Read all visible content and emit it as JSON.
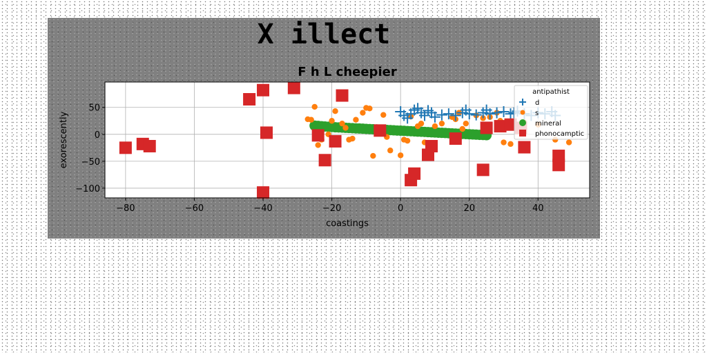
{
  "figure": {
    "suptitle": "X illect"
  },
  "chart_data": {
    "type": "scatter",
    "title": "F h L cheepier",
    "xlabel": "coastings",
    "ylabel": "exorescently",
    "xlim": [
      -86,
      55
    ],
    "ylim": [
      -118,
      97
    ],
    "xticks": [
      -80,
      -60,
      -40,
      -20,
      0,
      20,
      40
    ],
    "yticks": [
      -100,
      -50,
      0,
      50
    ],
    "grid": true,
    "legend": {
      "title": "antipathist",
      "placement": "upper-right"
    },
    "colors": {
      "d": "#1f77b4",
      "s": "#ff7f0e",
      "mineral": "#2ca02c",
      "phonocamptic": "#d62728"
    },
    "series": [
      {
        "name": "d",
        "marker": "plus",
        "points": [
          [
            0,
            42
          ],
          [
            1,
            35
          ],
          [
            2,
            30
          ],
          [
            3,
            38
          ],
          [
            4,
            45
          ],
          [
            5,
            48
          ],
          [
            6,
            40
          ],
          [
            7,
            35
          ],
          [
            8,
            44
          ],
          [
            9,
            40
          ],
          [
            10,
            32
          ],
          [
            12,
            36
          ],
          [
            14,
            38
          ],
          [
            16,
            35
          ],
          [
            18,
            40
          ],
          [
            19,
            45
          ],
          [
            20,
            38
          ],
          [
            22,
            36
          ],
          [
            24,
            40
          ],
          [
            25,
            45
          ],
          [
            26,
            38
          ],
          [
            28,
            40
          ],
          [
            30,
            42
          ],
          [
            32,
            38
          ],
          [
            33,
            40
          ],
          [
            34,
            43
          ],
          [
            36,
            38
          ],
          [
            38,
            35
          ],
          [
            40,
            40
          ],
          [
            42,
            38
          ],
          [
            44,
            42
          ],
          [
            45,
            35
          ]
        ]
      },
      {
        "name": "s",
        "marker": "circle",
        "points": [
          [
            -27,
            28
          ],
          [
            -26,
            27
          ],
          [
            -25,
            51
          ],
          [
            -24,
            -20
          ],
          [
            -23,
            -10
          ],
          [
            -21,
            0
          ],
          [
            -20,
            25
          ],
          [
            -19,
            43
          ],
          [
            -17,
            20
          ],
          [
            -16,
            12
          ],
          [
            -15,
            -10
          ],
          [
            -14,
            -8
          ],
          [
            -13,
            27
          ],
          [
            -11,
            40
          ],
          [
            -10,
            49
          ],
          [
            -9,
            48
          ],
          [
            -8,
            -40
          ],
          [
            -6,
            8
          ],
          [
            -5,
            36
          ],
          [
            -4,
            -5
          ],
          [
            -3,
            -30
          ],
          [
            0,
            -39
          ],
          [
            1,
            -10
          ],
          [
            2,
            -12
          ],
          [
            3,
            33
          ],
          [
            5,
            15
          ],
          [
            6,
            20
          ],
          [
            7,
            -15
          ],
          [
            10,
            15
          ],
          [
            12,
            20
          ],
          [
            15,
            32
          ],
          [
            16,
            28
          ],
          [
            17,
            40
          ],
          [
            18,
            10
          ],
          [
            19,
            20
          ],
          [
            22,
            35
          ],
          [
            24,
            30
          ],
          [
            26,
            32
          ],
          [
            28,
            40
          ],
          [
            29,
            25
          ],
          [
            30,
            -15
          ],
          [
            32,
            -18
          ],
          [
            34,
            10
          ],
          [
            36,
            22
          ],
          [
            40,
            18
          ],
          [
            45,
            -10
          ],
          [
            49,
            -15
          ]
        ]
      },
      {
        "name": "mineral",
        "marker": "circle",
        "points": [
          [
            -25,
            16
          ],
          [
            -24,
            15.5
          ],
          [
            -23,
            15
          ],
          [
            -22,
            14.5
          ],
          [
            -21,
            14
          ],
          [
            -20,
            13.5
          ],
          [
            -19,
            13
          ],
          [
            -18,
            12.7
          ],
          [
            -17,
            12.4
          ],
          [
            -16,
            12
          ],
          [
            -15,
            11.7
          ],
          [
            -14,
            11.4
          ],
          [
            -13,
            11
          ],
          [
            -12,
            10.7
          ],
          [
            -11,
            10.4
          ],
          [
            -10,
            10
          ],
          [
            -9,
            9.7
          ],
          [
            -8,
            9.4
          ],
          [
            -7,
            9
          ],
          [
            -6,
            8.7
          ],
          [
            -5,
            8.4
          ],
          [
            -4,
            8
          ],
          [
            -3,
            7.7
          ],
          [
            -2,
            7.4
          ],
          [
            -1,
            7
          ],
          [
            0,
            6.7
          ],
          [
            1,
            6.4
          ],
          [
            2,
            6
          ],
          [
            3,
            5.7
          ],
          [
            4,
            5.4
          ],
          [
            5,
            5
          ],
          [
            6,
            4.7
          ],
          [
            7,
            4.4
          ],
          [
            8,
            4
          ],
          [
            9,
            3.7
          ],
          [
            10,
            3.4
          ],
          [
            11,
            3
          ],
          [
            12,
            2.7
          ],
          [
            13,
            2.4
          ],
          [
            14,
            2
          ],
          [
            15,
            1.7
          ],
          [
            16,
            1.4
          ],
          [
            17,
            1
          ],
          [
            18,
            0.7
          ],
          [
            19,
            0.4
          ],
          [
            20,
            0
          ],
          [
            21,
            -0.3
          ],
          [
            22,
            -0.6
          ],
          [
            23,
            -1
          ],
          [
            24,
            -1.3
          ],
          [
            25,
            -1.6
          ]
        ]
      },
      {
        "name": "phonocamptic",
        "marker": "square",
        "points": [
          [
            -80,
            -25
          ],
          [
            -75,
            -18
          ],
          [
            -73,
            -22
          ],
          [
            -44,
            65
          ],
          [
            -40,
            82
          ],
          [
            -40,
            -108
          ],
          [
            -39,
            3
          ],
          [
            -31,
            86
          ],
          [
            -24,
            -2
          ],
          [
            -22,
            -48
          ],
          [
            -19,
            -13
          ],
          [
            -17,
            72
          ],
          [
            -6,
            7
          ],
          [
            3,
            -85
          ],
          [
            4,
            -73
          ],
          [
            8,
            -38
          ],
          [
            9,
            -22
          ],
          [
            16,
            -8
          ],
          [
            24,
            -66
          ],
          [
            25,
            12
          ],
          [
            29,
            15
          ],
          [
            32,
            18
          ],
          [
            35,
            12
          ],
          [
            36,
            -24
          ],
          [
            46,
            -40
          ],
          [
            46,
            -57
          ]
        ]
      }
    ]
  }
}
